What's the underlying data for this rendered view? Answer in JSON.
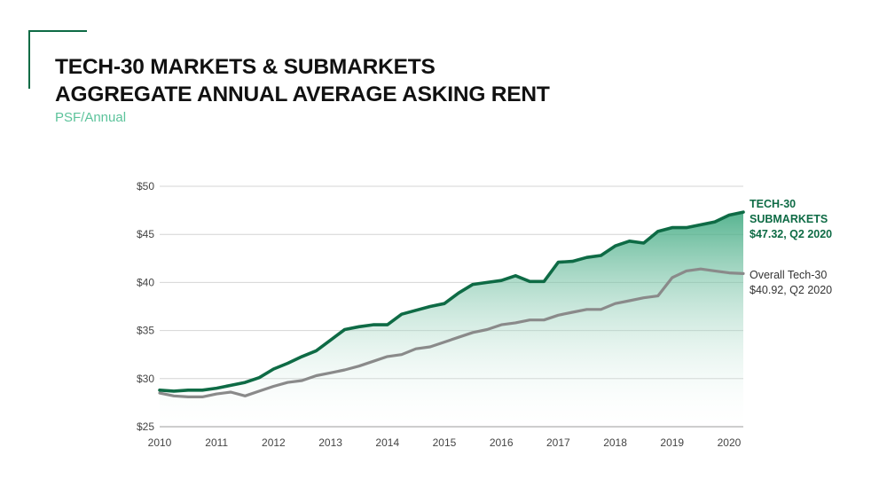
{
  "header": {
    "title_line1": "TECH-30 MARKETS & SUBMARKETS",
    "title_line2": "AGGREGATE ANNUAL AVERAGE ASKING RENT",
    "subtitle": "PSF/Annual"
  },
  "colors": {
    "accent": "#0e6b45",
    "submarkets_line": "#0e6b45",
    "overall_line": "#8a8a8a",
    "subtitle": "#5cc39b",
    "area_fill_top": "#3aa77d",
    "area_fill_bottom": "#ffffff"
  },
  "chart_data": {
    "type": "line",
    "title": "TECH-30 MARKETS & SUBMARKETS AGGREGATE ANNUAL AVERAGE ASKING RENT",
    "subtitle": "PSF/Annual",
    "xlim": [
      2010,
      2020.25
    ],
    "ylim": [
      25,
      50
    ],
    "x_ticks": [
      2010,
      2011,
      2012,
      2013,
      2014,
      2015,
      2016,
      2017,
      2018,
      2019,
      2020
    ],
    "y_ticks": [
      25,
      30,
      35,
      40,
      45,
      50
    ],
    "y_tick_labels": [
      "$25",
      "$30",
      "$35",
      "$40",
      "$45",
      "$50"
    ],
    "grid": "horizontal",
    "x": [
      2010.0,
      2010.25,
      2010.5,
      2010.75,
      2011.0,
      2011.25,
      2011.5,
      2011.75,
      2012.0,
      2012.25,
      2012.5,
      2012.75,
      2013.0,
      2013.25,
      2013.5,
      2013.75,
      2014.0,
      2014.25,
      2014.5,
      2014.75,
      2015.0,
      2015.25,
      2015.5,
      2015.75,
      2016.0,
      2016.25,
      2016.5,
      2016.75,
      2017.0,
      2017.25,
      2017.5,
      2017.75,
      2018.0,
      2018.25,
      2018.5,
      2018.75,
      2019.0,
      2019.25,
      2019.5,
      2019.75,
      2020.0,
      2020.25
    ],
    "series": [
      {
        "name": "TECH-30 SUBMARKETS",
        "label_lines": [
          "TECH-30",
          "SUBMARKETS",
          "$47.32, Q2 2020"
        ],
        "values": [
          28.8,
          28.7,
          28.8,
          28.8,
          29.0,
          29.3,
          29.6,
          30.1,
          31.0,
          31.6,
          32.3,
          32.9,
          34.0,
          35.1,
          35.4,
          35.6,
          35.6,
          36.7,
          37.1,
          37.5,
          37.8,
          38.9,
          39.8,
          40.0,
          40.2,
          40.7,
          40.1,
          40.1,
          42.1,
          42.2,
          42.6,
          42.8,
          43.8,
          44.3,
          44.1,
          45.3,
          45.7,
          45.7,
          46.0,
          46.3,
          47.0,
          47.32
        ]
      },
      {
        "name": "Overall Tech-30",
        "label_lines": [
          "Overall Tech-30",
          "$40.92, Q2 2020"
        ],
        "values": [
          28.5,
          28.2,
          28.1,
          28.1,
          28.4,
          28.6,
          28.2,
          28.7,
          29.2,
          29.6,
          29.8,
          30.3,
          30.6,
          30.9,
          31.3,
          31.8,
          32.3,
          32.5,
          33.1,
          33.3,
          33.8,
          34.3,
          34.8,
          35.1,
          35.6,
          35.8,
          36.1,
          36.1,
          36.6,
          36.9,
          37.2,
          37.2,
          37.8,
          38.1,
          38.4,
          38.6,
          40.5,
          41.2,
          41.4,
          41.2,
          41.0,
          40.92
        ]
      }
    ]
  }
}
